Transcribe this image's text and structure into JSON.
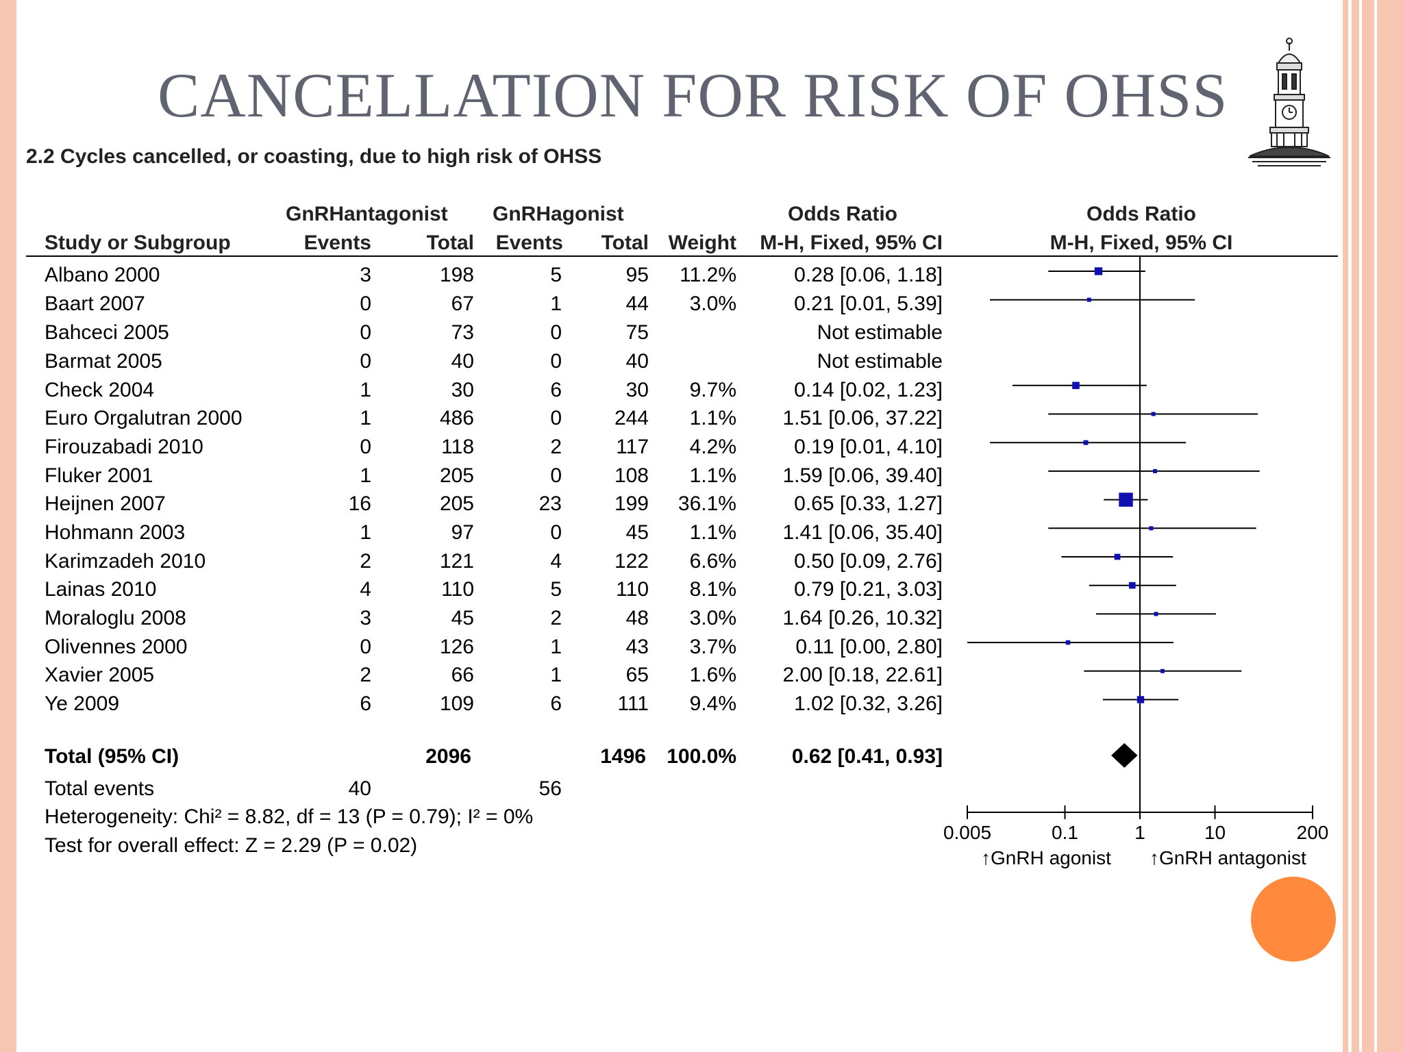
{
  "slide": {
    "title": "CANCELLATION FOR RISK OF OHSS",
    "subtitle": "2.2 Cycles cancelled, or coasting, due to high risk of OHSS",
    "accent_color": "#f7c6b1",
    "dot_color": "#ff8a3d",
    "logo_icon": "clock-tower-icon"
  },
  "headers": {
    "group1": "GnRHantagonist",
    "group2": "GnRHagonist",
    "study": "Study or Subgroup",
    "events1": "Events",
    "total1": "Total",
    "events2": "Events",
    "total2": "Total",
    "weight": "Weight",
    "or_title": "Odds Ratio",
    "or_method": "M-H, Fixed, 95% CI",
    "plot_title": "Odds Ratio",
    "plot_method": "M-H, Fixed, 95% CI"
  },
  "rows": [
    {
      "study": "Albano 2000",
      "e1": "3",
      "t1": "198",
      "e2": "5",
      "t2": "95",
      "weight": "11.2%",
      "ci": "0.28 [0.06, 1.18]"
    },
    {
      "study": "Baart 2007",
      "e1": "0",
      "t1": "67",
      "e2": "1",
      "t2": "44",
      "weight": "3.0%",
      "ci": "0.21 [0.01, 5.39]"
    },
    {
      "study": "Bahceci 2005",
      "e1": "0",
      "t1": "73",
      "e2": "0",
      "t2": "75",
      "weight": "",
      "ci": "Not estimable"
    },
    {
      "study": "Barmat 2005",
      "e1": "0",
      "t1": "40",
      "e2": "0",
      "t2": "40",
      "weight": "",
      "ci": "Not estimable"
    },
    {
      "study": "Check 2004",
      "e1": "1",
      "t1": "30",
      "e2": "6",
      "t2": "30",
      "weight": "9.7%",
      "ci": "0.14 [0.02, 1.23]"
    },
    {
      "study": "Euro Orgalutran 2000",
      "e1": "1",
      "t1": "486",
      "e2": "0",
      "t2": "244",
      "weight": "1.1%",
      "ci": "1.51 [0.06, 37.22]"
    },
    {
      "study": "Firouzabadi 2010",
      "e1": "0",
      "t1": "118",
      "e2": "2",
      "t2": "117",
      "weight": "4.2%",
      "ci": "0.19 [0.01, 4.10]"
    },
    {
      "study": "Fluker 2001",
      "e1": "1",
      "t1": "205",
      "e2": "0",
      "t2": "108",
      "weight": "1.1%",
      "ci": "1.59 [0.06, 39.40]"
    },
    {
      "study": "Heijnen 2007",
      "e1": "16",
      "t1": "205",
      "e2": "23",
      "t2": "199",
      "weight": "36.1%",
      "ci": "0.65 [0.33, 1.27]"
    },
    {
      "study": "Hohmann 2003",
      "e1": "1",
      "t1": "97",
      "e2": "0",
      "t2": "45",
      "weight": "1.1%",
      "ci": "1.41 [0.06, 35.40]"
    },
    {
      "study": "Karimzadeh 2010",
      "e1": "2",
      "t1": "121",
      "e2": "4",
      "t2": "122",
      "weight": "6.6%",
      "ci": "0.50 [0.09, 2.76]"
    },
    {
      "study": "Lainas 2010",
      "e1": "4",
      "t1": "110",
      "e2": "5",
      "t2": "110",
      "weight": "8.1%",
      "ci": "0.79 [0.21, 3.03]"
    },
    {
      "study": "Moraloglu 2008",
      "e1": "3",
      "t1": "45",
      "e2": "2",
      "t2": "48",
      "weight": "3.0%",
      "ci": "1.64 [0.26, 10.32]"
    },
    {
      "study": "Olivennes 2000",
      "e1": "0",
      "t1": "126",
      "e2": "1",
      "t2": "43",
      "weight": "3.7%",
      "ci": "0.11 [0.00, 2.80]"
    },
    {
      "study": "Xavier 2005",
      "e1": "2",
      "t1": "66",
      "e2": "1",
      "t2": "65",
      "weight": "1.6%",
      "ci": "2.00 [0.18, 22.61]"
    },
    {
      "study": "Ye 2009",
      "e1": "6",
      "t1": "109",
      "e2": "6",
      "t2": "111",
      "weight": "9.4%",
      "ci": "1.02 [0.32, 3.26]"
    }
  ],
  "total": {
    "label": "Total (95% CI)",
    "t1": "2096",
    "t2": "1496",
    "weight": "100.0%",
    "ci": "0.62 [0.41, 0.93]"
  },
  "total_events": {
    "label": "Total events",
    "e1": "40",
    "e2": "56"
  },
  "heterogeneity": "Heterogeneity: Chi² = 8.82, df = 13 (P = 0.79); I² = 0%",
  "overall_effect": "Test for overall effect: Z = 2.29 (P = 0.02)",
  "chart_data": {
    "type": "scatter",
    "scale": "log",
    "xlim": [
      0.005,
      200
    ],
    "ticks": [
      "0.005",
      "0.1",
      "1",
      "10",
      "200"
    ],
    "reference_line": 1,
    "left_label": "GnRH agonist",
    "right_label": "GnRH antagonist",
    "mark_color": "#1010b0",
    "studies": [
      {
        "name": "Albano 2000",
        "or": 0.28,
        "lo": 0.06,
        "hi": 1.18,
        "weight": 11.2
      },
      {
        "name": "Baart 2007",
        "or": 0.21,
        "lo": 0.01,
        "hi": 5.39,
        "weight": 3.0
      },
      {
        "name": "Bahceci 2005",
        "or": null,
        "lo": null,
        "hi": null,
        "weight": null
      },
      {
        "name": "Barmat 2005",
        "or": null,
        "lo": null,
        "hi": null,
        "weight": null
      },
      {
        "name": "Check 2004",
        "or": 0.14,
        "lo": 0.02,
        "hi": 1.23,
        "weight": 9.7
      },
      {
        "name": "Euro Orgalutran 2000",
        "or": 1.51,
        "lo": 0.06,
        "hi": 37.22,
        "weight": 1.1
      },
      {
        "name": "Firouzabadi 2010",
        "or": 0.19,
        "lo": 0.01,
        "hi": 4.1,
        "weight": 4.2
      },
      {
        "name": "Fluker 2001",
        "or": 1.59,
        "lo": 0.06,
        "hi": 39.4,
        "weight": 1.1
      },
      {
        "name": "Heijnen 2007",
        "or": 0.65,
        "lo": 0.33,
        "hi": 1.27,
        "weight": 36.1
      },
      {
        "name": "Hohmann 2003",
        "or": 1.41,
        "lo": 0.06,
        "hi": 35.4,
        "weight": 1.1
      },
      {
        "name": "Karimzadeh 2010",
        "or": 0.5,
        "lo": 0.09,
        "hi": 2.76,
        "weight": 6.6
      },
      {
        "name": "Lainas 2010",
        "or": 0.79,
        "lo": 0.21,
        "hi": 3.03,
        "weight": 8.1
      },
      {
        "name": "Moraloglu 2008",
        "or": 1.64,
        "lo": 0.26,
        "hi": 10.32,
        "weight": 3.0
      },
      {
        "name": "Olivennes 2000",
        "or": 0.11,
        "lo": 0.0,
        "hi": 2.8,
        "weight": 3.7
      },
      {
        "name": "Xavier 2005",
        "or": 2.0,
        "lo": 0.18,
        "hi": 22.61,
        "weight": 1.6
      },
      {
        "name": "Ye 2009",
        "or": 1.02,
        "lo": 0.32,
        "hi": 3.26,
        "weight": 9.4
      }
    ],
    "pooled": {
      "or": 0.62,
      "lo": 0.41,
      "hi": 0.93
    }
  }
}
